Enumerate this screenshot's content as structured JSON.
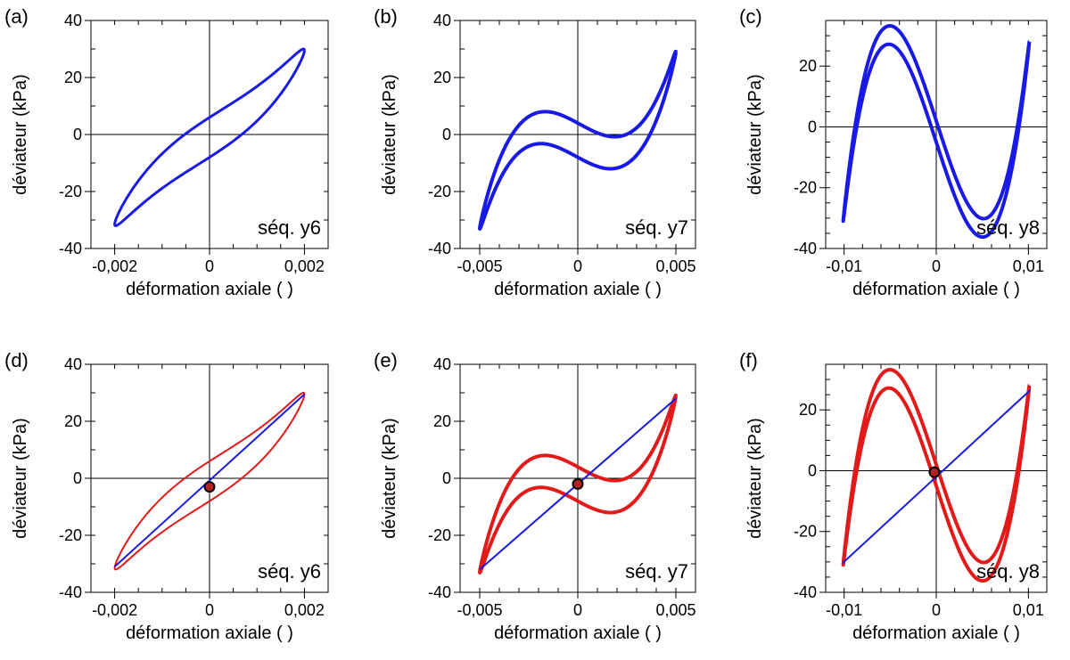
{
  "colors": {
    "loop_blue": "#1a1ae6",
    "loop_red": "#e31a1a",
    "secant_blue": "#1a1ae6",
    "marker_fill": "#b22222",
    "marker_edge": "#000000"
  },
  "chart_data": [
    {
      "panel": "(a)",
      "type": "line",
      "sequence_label": "séq. y6",
      "xlabel": "déformation axiale ( )",
      "ylabel": "déviateur (kPa)",
      "xlim": [
        -0.0025,
        0.0025
      ],
      "ylim": [
        -40,
        40
      ],
      "xticks": [
        -0.002,
        0,
        0.002
      ],
      "xtick_labels": [
        "-0,002",
        "0",
        "0,002"
      ],
      "yticks": [
        -40,
        -20,
        0,
        20,
        40
      ],
      "ytick_labels": [
        "-40",
        "-20",
        "0",
        "20",
        "40"
      ],
      "xminor_step": 0.0005,
      "yminor_step": 10,
      "series": [
        {
          "name": "loop",
          "color": "#1a1ae6",
          "width": 3,
          "x_amp": 0.002,
          "y_amp": 30.5,
          "y_offset": -1,
          "k": 0.3,
          "h": 7,
          "x_off": 0.0
        }
      ],
      "secant": null,
      "marker": null
    },
    {
      "panel": "(b)",
      "type": "line",
      "sequence_label": "séq. y7",
      "xlabel": "déformation axiale ( )",
      "ylabel": "déviateur (kPa)",
      "xlim": [
        -0.006,
        0.006
      ],
      "ylim": [
        -40,
        40
      ],
      "xticks": [
        -0.005,
        0,
        0.005
      ],
      "xtick_labels": [
        "-0,005",
        "0",
        "0,005"
      ],
      "yticks": [
        -40,
        -20,
        0,
        20,
        40
      ],
      "ytick_labels": [
        "-40",
        "-20",
        "0",
        "20",
        "40"
      ],
      "xminor_step": 0.001,
      "yminor_step": 10,
      "series": [
        {
          "name": "loop",
          "color": "#1a1ae6",
          "width": 4,
          "x_amp": 0.005,
          "y_amp": 31,
          "y_offset": -2,
          "k": 1.6,
          "h": 6,
          "x_off": 0.0
        }
      ],
      "secant": null,
      "marker": null
    },
    {
      "panel": "(c)",
      "type": "line",
      "sequence_label": "séq. y8",
      "xlabel": "déformation axiale ( )",
      "ylabel": "déviateur (kPa)",
      "xlim": [
        -0.012,
        0.012
      ],
      "ylim": [
        -40,
        35
      ],
      "xticks": [
        -0.01,
        0,
        0.01
      ],
      "xtick_labels": [
        "-0,01",
        "0",
        "0,01"
      ],
      "yticks": [
        -40,
        -20,
        0,
        20
      ],
      "ytick_labels": [
        "-40",
        "-20",
        "0",
        "20"
      ],
      "xminor_step": 0.002,
      "yminor_step": 5,
      "series": [
        {
          "name": "loop",
          "color": "#1a1ae6",
          "width": 4,
          "x_amp": 0.0101,
          "y_amp": 29.5,
          "y_offset": -1.5,
          "k": 4.2,
          "h": 3.5,
          "x_off": 0.0
        }
      ],
      "secant": null,
      "marker": null
    },
    {
      "panel": "(d)",
      "type": "line",
      "sequence_label": "séq. y6",
      "xlabel": "déformation axiale ( )",
      "ylabel": "déviateur (kPa)",
      "xlim": [
        -0.0025,
        0.0025
      ],
      "ylim": [
        -40,
        40
      ],
      "xticks": [
        -0.002,
        0,
        0.002
      ],
      "xtick_labels": [
        "-0,002",
        "0",
        "0,002"
      ],
      "yticks": [
        -40,
        -20,
        0,
        20,
        40
      ],
      "ytick_labels": [
        "-40",
        "-20",
        "0",
        "20",
        "40"
      ],
      "xminor_step": 0.0005,
      "yminor_step": 10,
      "series": [
        {
          "name": "loop",
          "color": "#e31a1a",
          "width": 2,
          "x_amp": 0.002,
          "y_amp": 30.5,
          "y_offset": -1,
          "k": 0.3,
          "h": 7,
          "x_off": 0.0
        }
      ],
      "secant": {
        "color": "#1a1ae6",
        "width": 2,
        "x": [
          -0.002,
          0.002
        ],
        "y": [
          -31,
          29.5
        ]
      },
      "marker": {
        "x": 0.0,
        "y": -3
      }
    },
    {
      "panel": "(e)",
      "type": "line",
      "sequence_label": "séq. y7",
      "xlabel": "déformation axiale ( )",
      "ylabel": "déviateur (kPa)",
      "xlim": [
        -0.006,
        0.006
      ],
      "ylim": [
        -40,
        40
      ],
      "xticks": [
        -0.005,
        0,
        0.005
      ],
      "xtick_labels": [
        "-0,005",
        "0",
        "0,005"
      ],
      "yticks": [
        -40,
        -20,
        0,
        20,
        40
      ],
      "ytick_labels": [
        "-40",
        "-20",
        "0",
        "20",
        "40"
      ],
      "xminor_step": 0.001,
      "yminor_step": 10,
      "series": [
        {
          "name": "loop",
          "color": "#e31a1a",
          "width": 4,
          "x_amp": 0.005,
          "y_amp": 31,
          "y_offset": -2,
          "k": 1.6,
          "h": 6,
          "x_off": 0.0
        }
      ],
      "secant": {
        "color": "#1a1ae6",
        "width": 2,
        "x": [
          -0.005,
          0.005
        ],
        "y": [
          -32,
          28
        ]
      },
      "marker": {
        "x": 0.0,
        "y": -2
      }
    },
    {
      "panel": "(f)",
      "type": "line",
      "sequence_label": "séq. y8",
      "xlabel": "déformation axiale ( )",
      "ylabel": "déviateur (kPa)",
      "xlim": [
        -0.012,
        0.012
      ],
      "ylim": [
        -40,
        35
      ],
      "xticks": [
        -0.01,
        0,
        0.01
      ],
      "xtick_labels": [
        "-0,01",
        "0",
        "0,01"
      ],
      "yticks": [
        -40,
        -20,
        0,
        20
      ],
      "ytick_labels": [
        "-40",
        "-20",
        "0",
        "20"
      ],
      "xminor_step": 0.002,
      "yminor_step": 5,
      "series": [
        {
          "name": "loop",
          "color": "#e31a1a",
          "width": 4,
          "x_amp": 0.0101,
          "y_amp": 29.5,
          "y_offset": -1.5,
          "k": 4.2,
          "h": 3.5,
          "x_off": 0.0
        }
      ],
      "secant": {
        "color": "#1a1ae6",
        "width": 2,
        "x": [
          -0.0102,
          0.0102
        ],
        "y": [
          -30.5,
          26.5
        ]
      },
      "marker": {
        "x": -0.0002,
        "y": -0.5
      }
    }
  ]
}
